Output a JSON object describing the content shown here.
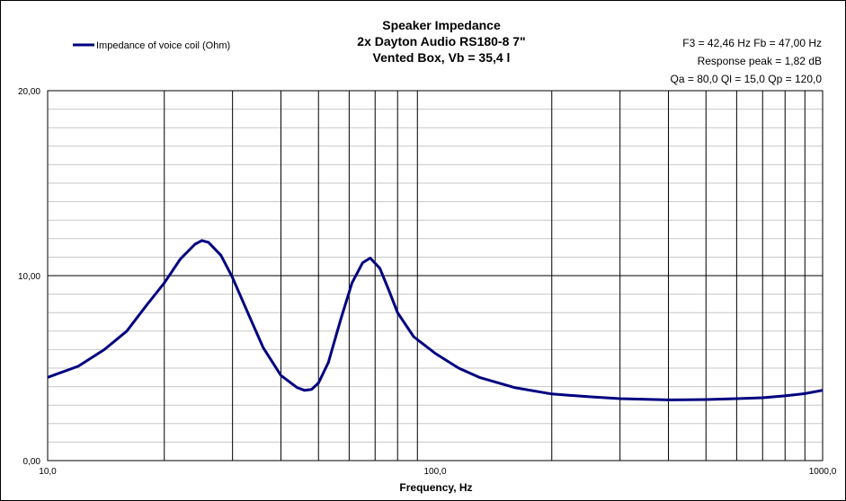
{
  "chart_data": {
    "type": "line",
    "title_lines": [
      "Speaker Impedance",
      "2x Dayton Audio RS180-8 7\"",
      "Vented Box, Vb = 35,4 l"
    ],
    "info_lines": [
      "F3 = 42,46 Hz  Fb = 47,00 Hz",
      "Response peak = 1,82 dB",
      "Qa = 80,0  Ql = 15,0  Qp = 120,0"
    ],
    "xlabel": "Frequency, Hz",
    "ylabel": "",
    "x_scale": "log",
    "xlim": [
      10,
      1000
    ],
    "ylim": [
      0,
      20
    ],
    "x_tick_labels": [
      "10,0",
      "100,0",
      "1000,0"
    ],
    "x_ticks": [
      10,
      100,
      1000
    ],
    "y_tick_labels": [
      "0,00",
      "10,00",
      "20,00"
    ],
    "y_ticks": [
      0,
      10,
      20
    ],
    "grid": true,
    "legend_position": "top-left",
    "series": [
      {
        "name": "Impedance of voice coil (Ohm)",
        "color": "#000080",
        "points": [
          [
            10,
            4.5
          ],
          [
            12,
            5.1
          ],
          [
            14,
            6.0
          ],
          [
            16,
            7.0
          ],
          [
            18,
            8.4
          ],
          [
            20,
            9.6
          ],
          [
            22,
            10.9
          ],
          [
            24,
            11.7
          ],
          [
            25,
            11.9
          ],
          [
            26,
            11.8
          ],
          [
            28,
            11.1
          ],
          [
            30,
            9.9
          ],
          [
            33,
            7.9
          ],
          [
            36,
            6.1
          ],
          [
            40,
            4.6
          ],
          [
            44,
            3.95
          ],
          [
            46,
            3.8
          ],
          [
            48,
            3.85
          ],
          [
            50,
            4.2
          ],
          [
            53,
            5.3
          ],
          [
            57,
            7.6
          ],
          [
            61,
            9.6
          ],
          [
            65,
            10.7
          ],
          [
            68,
            10.95
          ],
          [
            72,
            10.4
          ],
          [
            76,
            9.2
          ],
          [
            80,
            8.0
          ],
          [
            88,
            6.7
          ],
          [
            100,
            5.8
          ],
          [
            115,
            5.0
          ],
          [
            130,
            4.5
          ],
          [
            160,
            3.95
          ],
          [
            200,
            3.6
          ],
          [
            250,
            3.45
          ],
          [
            300,
            3.35
          ],
          [
            400,
            3.28
          ],
          [
            500,
            3.3
          ],
          [
            600,
            3.35
          ],
          [
            700,
            3.4
          ],
          [
            800,
            3.5
          ],
          [
            900,
            3.62
          ],
          [
            1000,
            3.8
          ]
        ]
      }
    ]
  }
}
